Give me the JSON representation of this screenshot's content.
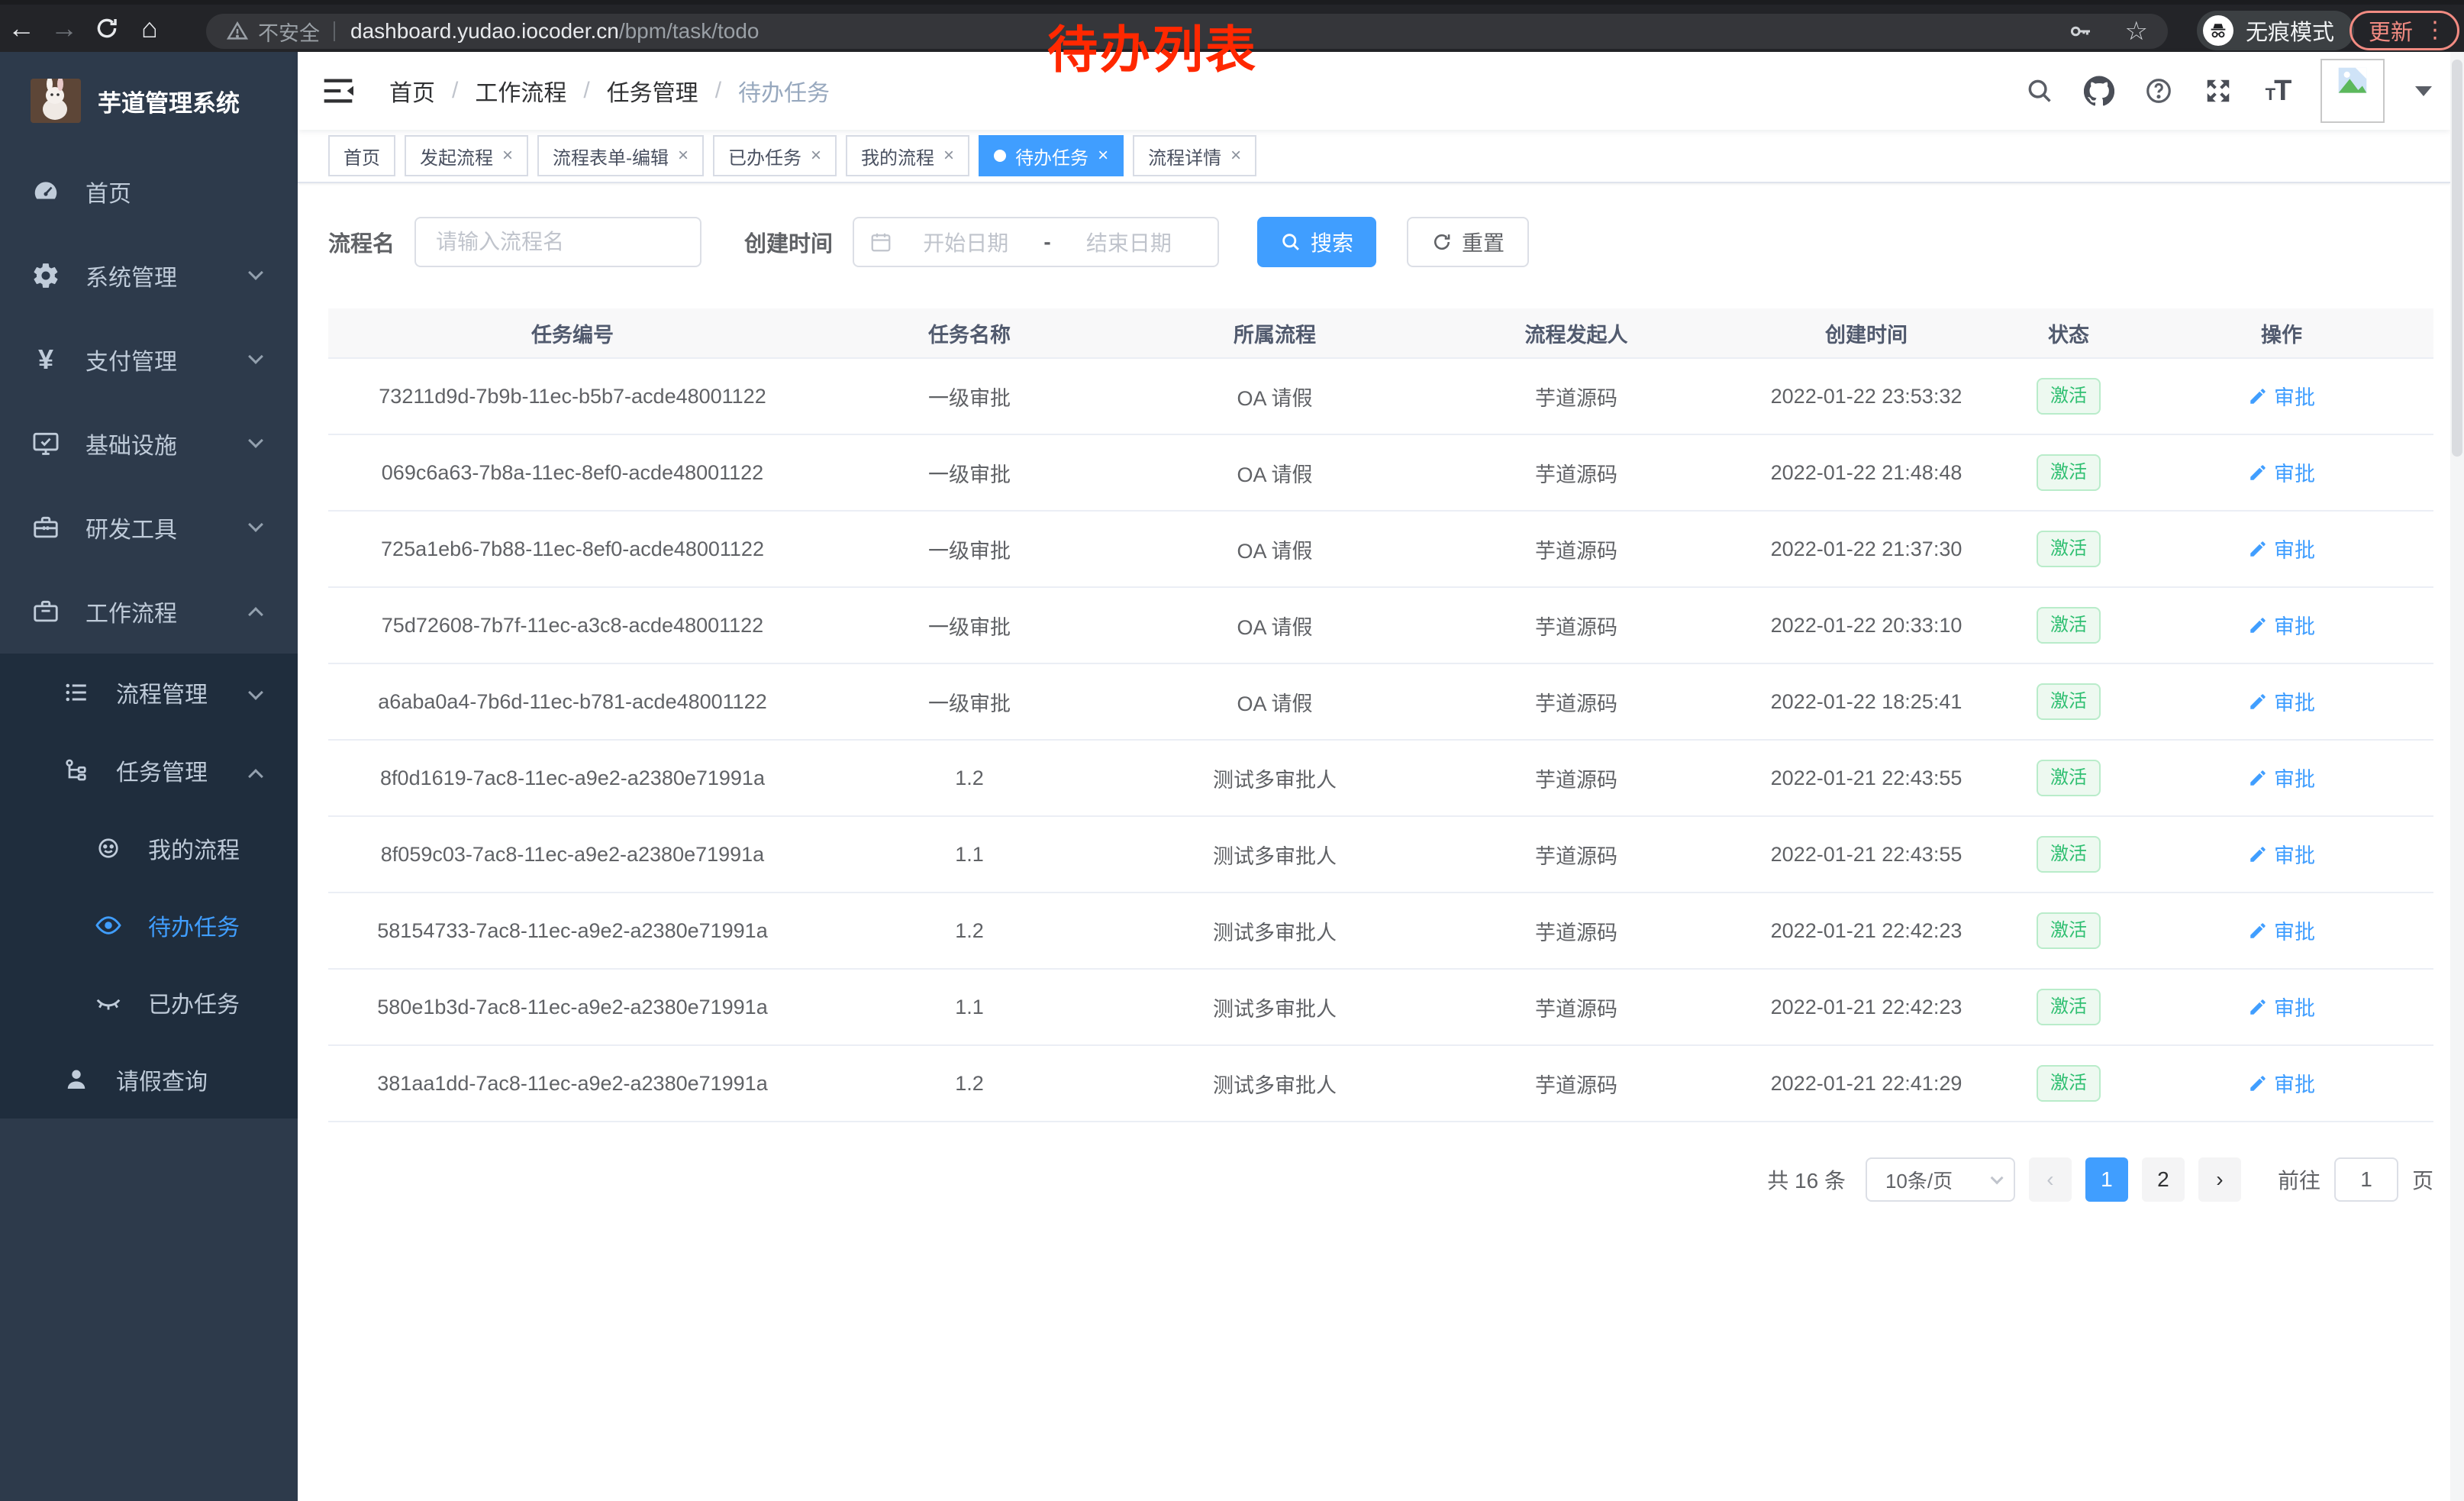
{
  "browser": {
    "security_label": "不安全",
    "url_host": "dashboard.yudao.iocoder.cn",
    "url_path": "/bpm/task/todo",
    "incognito_label": "无痕模式",
    "update_label": "更新"
  },
  "annotation": {
    "text": "待办列表",
    "color": "#ff2800"
  },
  "sidebar": {
    "title": "芋道管理系统",
    "items": [
      {
        "label": "首页",
        "icon": "dashboard-icon"
      },
      {
        "label": "系统管理",
        "icon": "gear-icon",
        "chevron": "down"
      },
      {
        "label": "支付管理",
        "icon": "yen-icon",
        "chevron": "down"
      },
      {
        "label": "基础设施",
        "icon": "monitor-icon",
        "chevron": "down"
      },
      {
        "label": "研发工具",
        "icon": "toolbox-icon",
        "chevron": "down"
      },
      {
        "label": "工作流程",
        "icon": "briefcase-icon",
        "chevron": "up"
      },
      {
        "label": "流程管理",
        "icon": "list-tree-icon",
        "chevron": "down"
      },
      {
        "label": "任务管理",
        "icon": "flow-icon",
        "chevron": "up"
      },
      {
        "label": "我的流程",
        "icon": "face-icon"
      },
      {
        "label": "待办任务",
        "icon": "eye-icon",
        "active": true
      },
      {
        "label": "已办任务",
        "icon": "eye-closed-icon"
      },
      {
        "label": "请假查询",
        "icon": "user-icon"
      }
    ]
  },
  "header": {
    "breadcrumb": [
      "首页",
      "工作流程",
      "任务管理",
      "待办任务"
    ],
    "icons": [
      "search-icon",
      "github-icon",
      "help-icon",
      "fullscreen-icon",
      "font-size-icon",
      "avatar",
      "caret-down-icon"
    ]
  },
  "tags": [
    {
      "label": "首页",
      "closable": false,
      "active": false
    },
    {
      "label": "发起流程",
      "closable": true,
      "active": false
    },
    {
      "label": "流程表单-编辑",
      "closable": true,
      "active": false
    },
    {
      "label": "已办任务",
      "closable": true,
      "active": false
    },
    {
      "label": "我的流程",
      "closable": true,
      "active": false
    },
    {
      "label": "待办任务",
      "closable": true,
      "active": true
    },
    {
      "label": "流程详情",
      "closable": true,
      "active": false
    }
  ],
  "filters": {
    "name_label": "流程名",
    "name_placeholder": "请输入流程名",
    "time_label": "创建时间",
    "start_placeholder": "开始日期",
    "range_separator": "-",
    "end_placeholder": "结束日期",
    "search_label": "搜索",
    "reset_label": "重置"
  },
  "table": {
    "columns": [
      "任务编号",
      "任务名称",
      "所属流程",
      "流程发起人",
      "创建时间",
      "状态",
      "操作"
    ],
    "rows": [
      {
        "id": "73211d9d-7b9b-11ec-b5b7-acde48001122",
        "name": "一级审批",
        "process": "OA 请假",
        "starter": "芋道源码",
        "created": "2022-01-22 23:53:32",
        "status": "激活",
        "action": "审批"
      },
      {
        "id": "069c6a63-7b8a-11ec-8ef0-acde48001122",
        "name": "一级审批",
        "process": "OA 请假",
        "starter": "芋道源码",
        "created": "2022-01-22 21:48:48",
        "status": "激活",
        "action": "审批"
      },
      {
        "id": "725a1eb6-7b88-11ec-8ef0-acde48001122",
        "name": "一级审批",
        "process": "OA 请假",
        "starter": "芋道源码",
        "created": "2022-01-22 21:37:30",
        "status": "激活",
        "action": "审批"
      },
      {
        "id": "75d72608-7b7f-11ec-a3c8-acde48001122",
        "name": "一级审批",
        "process": "OA 请假",
        "starter": "芋道源码",
        "created": "2022-01-22 20:33:10",
        "status": "激活",
        "action": "审批"
      },
      {
        "id": "a6aba0a4-7b6d-11ec-b781-acde48001122",
        "name": "一级审批",
        "process": "OA 请假",
        "starter": "芋道源码",
        "created": "2022-01-22 18:25:41",
        "status": "激活",
        "action": "审批"
      },
      {
        "id": "8f0d1619-7ac8-11ec-a9e2-a2380e71991a",
        "name": "1.2",
        "process": "测试多审批人",
        "starter": "芋道源码",
        "created": "2022-01-21 22:43:55",
        "status": "激活",
        "action": "审批"
      },
      {
        "id": "8f059c03-7ac8-11ec-a9e2-a2380e71991a",
        "name": "1.1",
        "process": "测试多审批人",
        "starter": "芋道源码",
        "created": "2022-01-21 22:43:55",
        "status": "激活",
        "action": "审批"
      },
      {
        "id": "58154733-7ac8-11ec-a9e2-a2380e71991a",
        "name": "1.2",
        "process": "测试多审批人",
        "starter": "芋道源码",
        "created": "2022-01-21 22:42:23",
        "status": "激活",
        "action": "审批"
      },
      {
        "id": "580e1b3d-7ac8-11ec-a9e2-a2380e71991a",
        "name": "1.1",
        "process": "测试多审批人",
        "starter": "芋道源码",
        "created": "2022-01-21 22:42:23",
        "status": "激活",
        "action": "审批"
      },
      {
        "id": "381aa1dd-7ac8-11ec-a9e2-a2380e71991a",
        "name": "1.2",
        "process": "测试多审批人",
        "starter": "芋道源码",
        "created": "2022-01-21 22:41:29",
        "status": "激活",
        "action": "审批"
      }
    ]
  },
  "pagination": {
    "total_label": "共 16 条",
    "page_size": "10条/页",
    "prev": "‹",
    "next": "›",
    "pages": [
      "1",
      "2"
    ],
    "current": "1",
    "goto_label": "前往",
    "goto_value": "1",
    "goto_suffix": "页"
  }
}
